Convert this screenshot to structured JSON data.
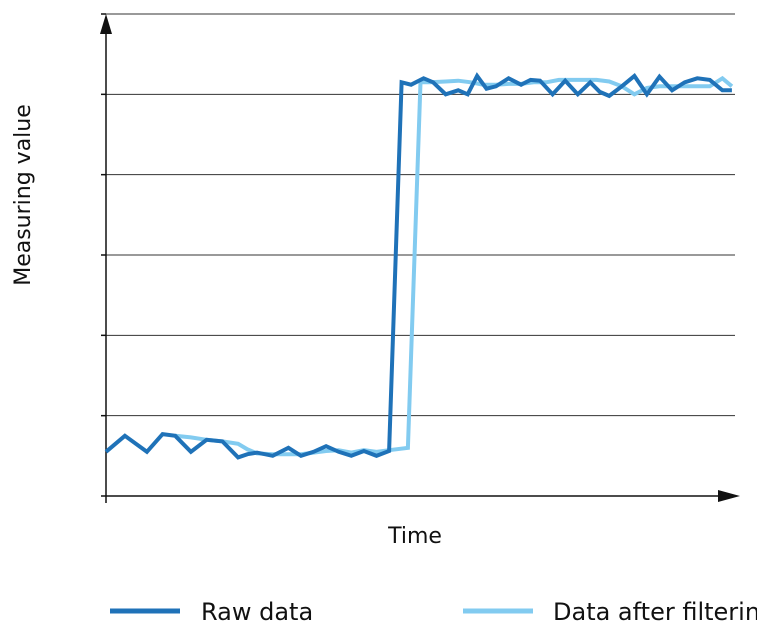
{
  "chart_data": {
    "type": "line",
    "title": "",
    "xlabel": "Time",
    "ylabel": "Measuring value",
    "xlim": [
      0,
      100
    ],
    "ylim": [
      0,
      6
    ],
    "grid": {
      "horizontal": true,
      "vertical": false
    },
    "y_gridlines": [
      1,
      2,
      3,
      4,
      5,
      6
    ],
    "x_ticks_labeled": false,
    "y_ticks_labeled": false,
    "legend": {
      "placement": "bottom"
    },
    "series": [
      {
        "name": "Raw data",
        "color": "#1f72b8",
        "x": [
          0,
          3,
          6.5,
          9,
          11,
          13.5,
          16,
          18.5,
          21,
          22.5,
          24,
          26.5,
          29,
          31,
          33,
          35,
          37,
          39,
          41,
          43,
          45,
          47,
          48.5,
          50.5,
          52,
          54,
          56,
          57.5,
          59,
          60.5,
          62,
          64,
          66,
          67.5,
          69,
          71,
          73,
          75,
          77,
          78.5,
          80,
          82,
          84,
          86,
          88,
          90,
          92,
          94,
          96,
          98,
          99.5
        ],
        "y": [
          0.55,
          0.75,
          0.55,
          0.77,
          0.75,
          0.55,
          0.7,
          0.68,
          0.48,
          0.52,
          0.54,
          0.5,
          0.6,
          0.5,
          0.55,
          0.62,
          0.55,
          0.5,
          0.56,
          0.5,
          0.56,
          5.15,
          5.12,
          5.2,
          5.15,
          5.0,
          5.05,
          5.0,
          5.23,
          5.07,
          5.1,
          5.2,
          5.12,
          5.18,
          5.17,
          5.0,
          5.17,
          5.0,
          5.15,
          5.03,
          4.98,
          5.1,
          5.23,
          5.0,
          5.22,
          5.05,
          5.15,
          5.2,
          5.18,
          5.05,
          5.05
        ]
      },
      {
        "name": "Data after filtering",
        "color": "#82cbf0",
        "x": [
          11,
          13.5,
          16,
          18.5,
          21,
          22.5,
          24,
          26.5,
          29,
          31,
          33,
          35,
          37,
          39,
          41,
          43,
          45,
          48,
          50,
          51.5,
          54,
          56,
          58,
          60,
          62,
          64,
          66,
          68,
          70,
          72,
          74,
          76,
          78,
          80,
          82,
          84,
          86,
          88,
          90,
          92,
          94,
          96,
          98,
          99.5
        ],
        "y": [
          0.75,
          0.73,
          0.7,
          0.68,
          0.65,
          0.58,
          0.53,
          0.52,
          0.52,
          0.52,
          0.54,
          0.56,
          0.57,
          0.54,
          0.57,
          0.55,
          0.57,
          0.6,
          5.15,
          5.15,
          5.16,
          5.17,
          5.15,
          5.12,
          5.12,
          5.13,
          5.13,
          5.15,
          5.15,
          5.18,
          5.18,
          5.18,
          5.18,
          5.16,
          5.1,
          5.0,
          5.08,
          5.1,
          5.1,
          5.1,
          5.1,
          5.1,
          5.2,
          5.1
        ]
      }
    ]
  }
}
